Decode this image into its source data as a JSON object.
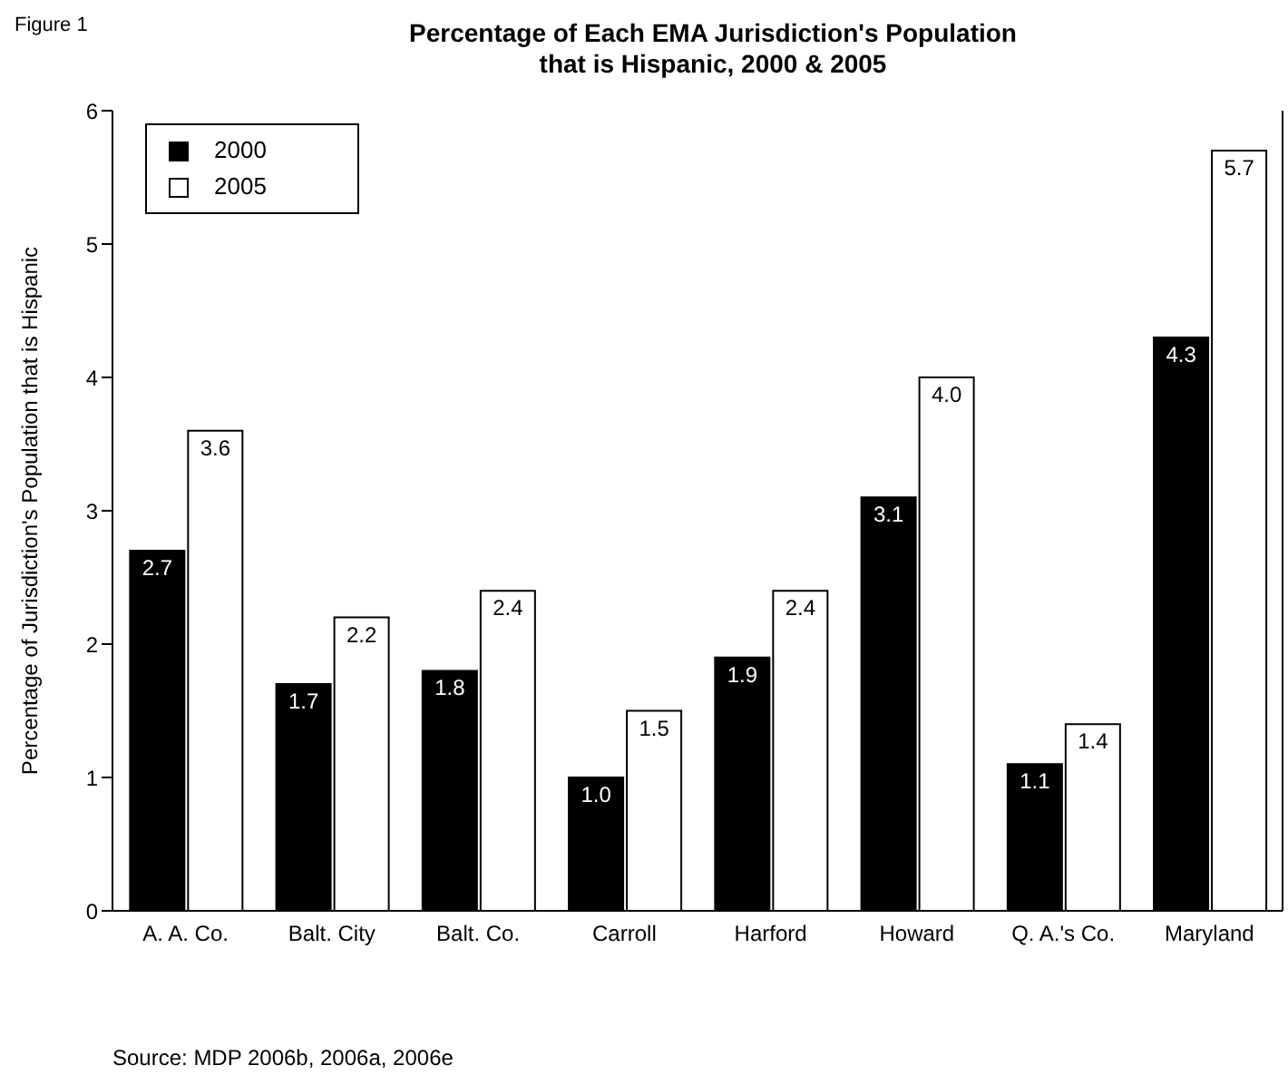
{
  "chart_data": {
    "type": "bar",
    "title": "Percentage of Each EMA Jurisdiction's Population that is Hispanic, 2000 & 2005",
    "ylabel": "Percentage of Jurisdiction's Population that is Hispanic",
    "annotations": [
      "Figure 1",
      "Source: MDP 2006b, 2006a, 2006e"
    ],
    "categories": [
      "A. A. Co.",
      "Balt. City",
      "Balt. Co.",
      "Carroll",
      "Harford",
      "Howard",
      "Q. A.'s Co.",
      "Maryland"
    ],
    "series": [
      {
        "name": "2000",
        "color": "#000000",
        "values": [
          2.7,
          1.7,
          1.8,
          1.0,
          1.9,
          3.1,
          1.1,
          4.3
        ],
        "value_labels": [
          "2.7",
          "1.7",
          "1.8",
          "1.0",
          "1.9",
          "3.1",
          "1.1",
          "4.3"
        ]
      },
      {
        "name": "2005",
        "color": "#ffffff",
        "values": [
          3.6,
          2.2,
          2.4,
          1.5,
          2.4,
          4.0,
          1.4,
          5.7
        ],
        "value_labels": [
          "3.6",
          "2.2",
          "2.4",
          "1.5",
          "2.4",
          "4.0",
          "1.4",
          "5.7"
        ]
      }
    ],
    "ylim": [
      0,
      6
    ],
    "yticks": [
      0,
      1,
      2,
      3,
      4,
      5,
      6
    ],
    "grid": false,
    "legend": "top left"
  }
}
